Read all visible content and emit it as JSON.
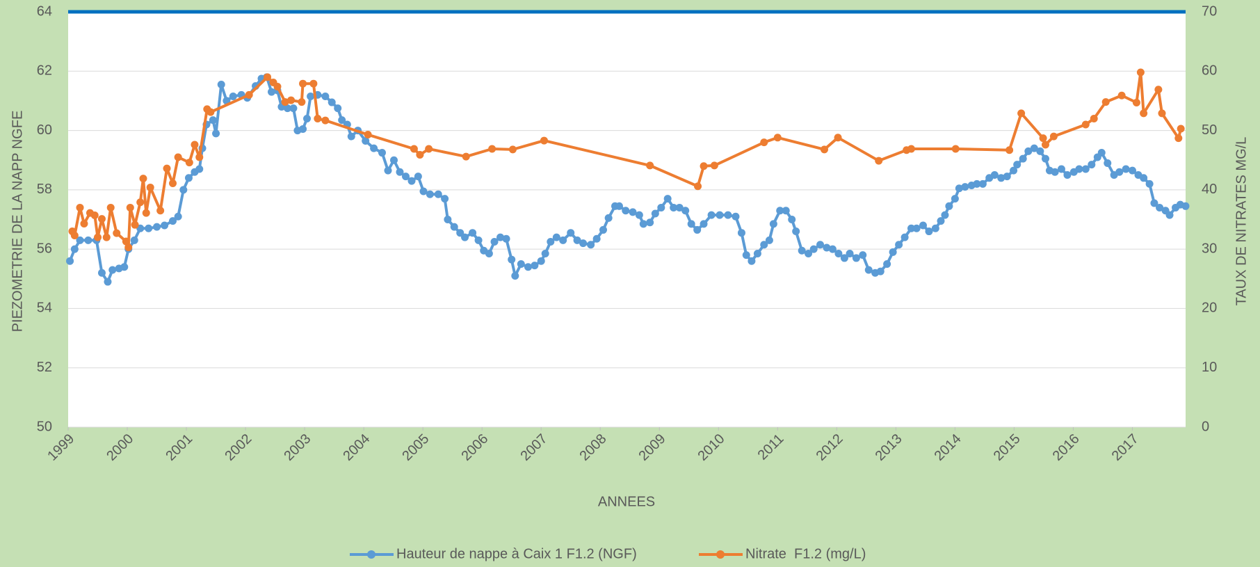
{
  "chart_data": {
    "type": "line",
    "y_label": "PIEZOMETRIE DE LA NAPP NGFE",
    "y2_label": "TAUX DE NITRATES MG/L",
    "x_label": "ANNEES",
    "xlim": [
      1999,
      2017.9
    ],
    "xticks": [
      1999,
      2000,
      2001,
      2002,
      2003,
      2004,
      2005,
      2006,
      2007,
      2008,
      2009,
      2010,
      2011,
      2012,
      2013,
      2014,
      2015,
      2016,
      2017
    ],
    "ylim": [
      50,
      64
    ],
    "yticks": [
      50,
      52,
      54,
      56,
      58,
      60,
      62,
      64
    ],
    "y2lim": [
      0,
      70
    ],
    "y2ticks": [
      0,
      10,
      20,
      30,
      40,
      50,
      60,
      70
    ],
    "grid": true,
    "legend": "bottom",
    "series": [
      {
        "name": "Hauteur de nappe à Caix 1 F1.2 (NGF)",
        "color": "#5b9bd5",
        "axis": "y",
        "x": [
          1999.03,
          1999.11,
          1999.2,
          1999.34,
          1999.48,
          1999.57,
          1999.67,
          1999.75,
          1999.86,
          1999.95,
          2000.02,
          2000.12,
          2000.22,
          2000.36,
          2000.5,
          2000.63,
          2000.77,
          2000.86,
          2000.95,
          2001.04,
          2001.14,
          2001.22,
          2001.27,
          2001.34,
          2001.45,
          2001.5,
          2001.59,
          2001.68,
          2001.79,
          2001.93,
          2002.03,
          2002.17,
          2002.27,
          2002.36,
          2002.44,
          2002.54,
          2002.61,
          2002.71,
          2002.81,
          2002.88,
          2002.97,
          2003.04,
          2003.1,
          2003.22,
          2003.35,
          2003.46,
          2003.56,
          2003.63,
          2003.72,
          2003.79,
          2003.9,
          2004.03,
          2004.17,
          2004.31,
          2004.41,
          2004.51,
          2004.61,
          2004.71,
          2004.81,
          2004.92,
          2005.01,
          2005.12,
          2005.26,
          2005.37,
          2005.42,
          2005.53,
          2005.63,
          2005.71,
          2005.84,
          2005.94,
          2006.03,
          2006.12,
          2006.21,
          2006.31,
          2006.41,
          2006.5,
          2006.56,
          2006.66,
          2006.78,
          2006.89,
          2007.0,
          2007.07,
          2007.16,
          2007.26,
          2007.37,
          2007.5,
          2007.61,
          2007.71,
          2007.84,
          2007.94,
          2008.05,
          2008.14,
          2008.25,
          2008.32,
          2008.43,
          2008.55,
          2008.66,
          2008.73,
          2008.84,
          2008.93,
          2009.03,
          2009.14,
          2009.24,
          2009.34,
          2009.44,
          2009.54,
          2009.64,
          2009.75,
          2009.88,
          2010.02,
          2010.16,
          2010.29,
          2010.39,
          2010.47,
          2010.56,
          2010.66,
          2010.77,
          2010.86,
          2010.93,
          2011.04,
          2011.14,
          2011.24,
          2011.31,
          2011.41,
          2011.52,
          2011.61,
          2011.72,
          2011.83,
          2011.93,
          2012.03,
          2012.13,
          2012.22,
          2012.33,
          2012.44,
          2012.54,
          2012.65,
          2012.74,
          2012.85,
          2012.95,
          2013.05,
          2013.15,
          2013.26,
          2013.35,
          2013.46,
          2013.56,
          2013.67,
          2013.76,
          2013.83,
          2013.9,
          2014.0,
          2014.07,
          2014.17,
          2014.28,
          2014.37,
          2014.47,
          2014.58,
          2014.67,
          2014.78,
          2014.88,
          2014.99,
          2015.05,
          2015.15,
          2015.24,
          2015.34,
          2015.44,
          2015.53,
          2015.6,
          2015.69,
          2015.8,
          2015.9,
          2016.01,
          2016.1,
          2016.21,
          2016.31,
          2016.41,
          2016.48,
          2016.58,
          2016.69,
          2016.78,
          2016.89,
          2017.0,
          2017.1,
          2017.19,
          2017.29,
          2017.37,
          2017.46,
          2017.56,
          2017.63,
          2017.73,
          2017.81,
          2017.9
        ],
        "values": [
          55.6,
          56.0,
          56.3,
          56.3,
          56.3,
          55.2,
          54.9,
          55.3,
          55.35,
          55.4,
          56.0,
          56.3,
          56.7,
          56.7,
          56.75,
          56.8,
          56.95,
          57.1,
          58.0,
          58.4,
          58.6,
          58.7,
          59.4,
          60.2,
          60.35,
          59.9,
          61.55,
          61.0,
          61.15,
          61.2,
          61.1,
          61.5,
          61.75,
          61.8,
          61.3,
          61.35,
          60.8,
          60.75,
          60.75,
          60.0,
          60.05,
          60.4,
          61.15,
          61.2,
          61.15,
          60.95,
          60.75,
          60.35,
          60.2,
          59.8,
          60.0,
          59.65,
          59.4,
          59.25,
          58.65,
          59.0,
          58.6,
          58.45,
          58.3,
          58.45,
          57.95,
          57.85,
          57.85,
          57.7,
          57.0,
          56.75,
          56.55,
          56.4,
          56.55,
          56.3,
          55.95,
          55.85,
          56.25,
          56.4,
          56.35,
          55.65,
          55.1,
          55.5,
          55.4,
          55.45,
          55.6,
          55.85,
          56.25,
          56.4,
          56.3,
          56.55,
          56.3,
          56.2,
          56.15,
          56.35,
          56.65,
          57.05,
          57.45,
          57.45,
          57.3,
          57.25,
          57.15,
          56.85,
          56.9,
          57.2,
          57.4,
          57.7,
          57.4,
          57.4,
          57.3,
          56.85,
          56.65,
          56.85,
          57.15,
          57.15,
          57.15,
          57.1,
          56.55,
          55.8,
          55.6,
          55.85,
          56.15,
          56.3,
          56.85,
          57.3,
          57.3,
          57.0,
          56.6,
          55.95,
          55.85,
          56.0,
          56.15,
          56.05,
          56.0,
          55.85,
          55.7,
          55.85,
          55.7,
          55.8,
          55.3,
          55.2,
          55.25,
          55.5,
          55.9,
          56.15,
          56.4,
          56.7,
          56.7,
          56.8,
          56.6,
          56.7,
          56.95,
          57.15,
          57.45,
          57.7,
          58.05,
          58.1,
          58.15,
          58.2,
          58.2,
          58.4,
          58.5,
          58.4,
          58.45,
          58.65,
          58.85,
          59.05,
          59.3,
          59.4,
          59.3,
          59.05,
          58.65,
          58.6,
          58.7,
          58.5,
          58.6,
          58.7,
          58.7,
          58.85,
          59.1,
          59.25,
          58.9,
          58.5,
          58.6,
          58.7,
          58.65,
          58.5,
          58.4,
          58.2,
          57.55,
          57.4,
          57.3,
          57.15,
          57.4,
          57.5,
          57.45
        ]
      },
      {
        "name": "Nitrate  F1.2 (mg/L)",
        "color": "#ed7d31",
        "axis": "y2",
        "x": [
          1999.07,
          1999.11,
          1999.2,
          1999.27,
          1999.37,
          1999.45,
          1999.5,
          1999.57,
          1999.65,
          1999.72,
          1999.82,
          1999.98,
          2000.02,
          2000.05,
          2000.13,
          2000.22,
          2000.27,
          2000.32,
          2000.39,
          2000.56,
          2000.67,
          2000.77,
          2000.86,
          2001.05,
          2001.14,
          2001.22,
          2001.35,
          2001.41,
          2002.06,
          2002.37,
          2002.47,
          2002.54,
          2002.67,
          2002.77,
          2002.95,
          2002.97,
          2003.15,
          2003.22,
          2003.35,
          2004.07,
          2004.85,
          2004.95,
          2005.1,
          2005.73,
          2006.17,
          2006.52,
          2007.05,
          2008.84,
          2009.65,
          2009.75,
          2009.93,
          2010.77,
          2011.0,
          2011.79,
          2012.02,
          2012.71,
          2013.18,
          2013.26,
          2014.01,
          2014.92,
          2015.12,
          2015.49,
          2015.53,
          2015.67,
          2016.21,
          2016.35,
          2016.55,
          2016.82,
          2017.07,
          2017.14,
          2017.19,
          2017.44,
          2017.5,
          2017.78,
          2017.82
        ],
        "values": [
          33.0,
          32.3,
          37.0,
          34.3,
          36.1,
          35.7,
          32.0,
          35.1,
          32.0,
          37.0,
          32.7,
          31.3,
          30.3,
          37.0,
          34.1,
          37.9,
          41.9,
          36.1,
          40.4,
          36.5,
          43.6,
          41.1,
          45.5,
          44.6,
          47.6,
          45.5,
          53.6,
          53.1,
          56.0,
          59.0,
          58.1,
          57.4,
          54.8,
          55.1,
          54.8,
          57.9,
          57.9,
          52.0,
          51.7,
          49.3,
          46.9,
          45.9,
          46.9,
          45.6,
          46.9,
          46.8,
          48.3,
          44.1,
          40.6,
          44.0,
          44.1,
          48.0,
          48.8,
          46.8,
          48.8,
          44.9,
          46.7,
          46.9,
          46.9,
          46.7,
          52.9,
          48.7,
          47.6,
          49.0,
          51.0,
          52.0,
          54.8,
          55.9,
          54.7,
          59.8,
          52.9,
          56.9,
          52.9,
          48.7,
          50.3
        ]
      }
    ]
  }
}
